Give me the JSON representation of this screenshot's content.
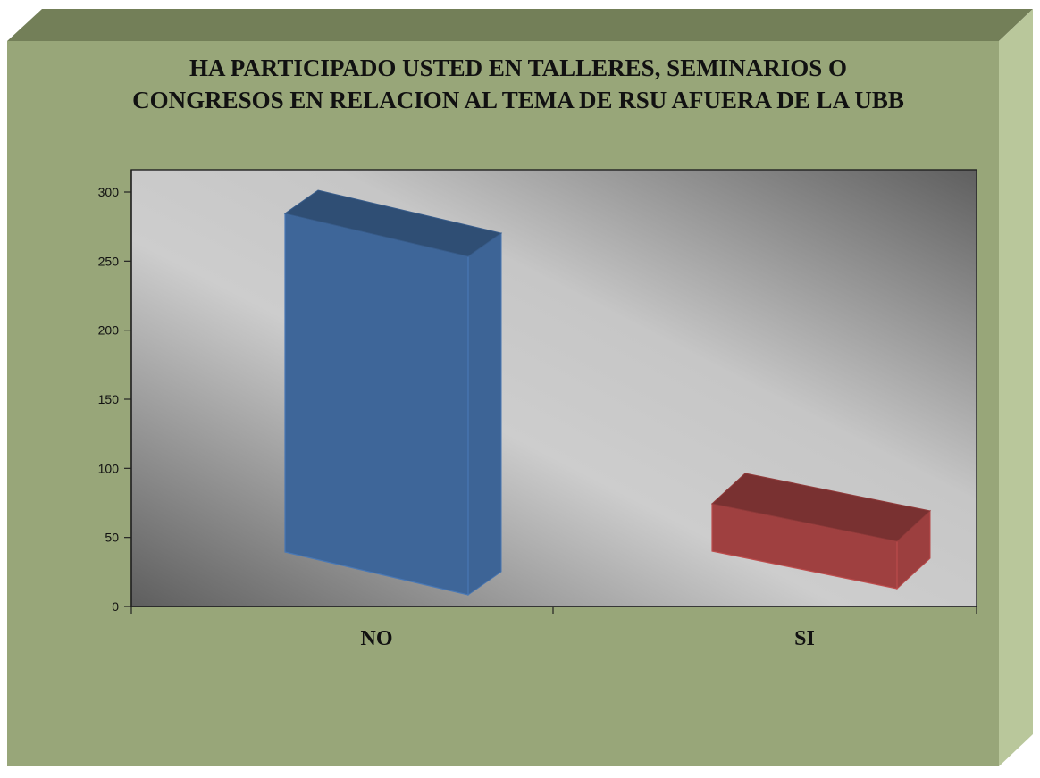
{
  "title_lines": [
    "HA PARTICIPADO USTED EN TALLERES, SEMINARIOS O",
    "CONGRESOS EN RELACION AL TEMA DE RSU AFUERA DE LA UBB"
  ],
  "colors": {
    "frame_face": "#98a679",
    "frame_top": "#737f58",
    "frame_side": "#b9c79b",
    "bar_no": "#3e6699",
    "bar_si": "#9f4040"
  },
  "chart_data": {
    "type": "bar",
    "style": "3d-column",
    "title": "HA PARTICIPADO USTED EN TALLERES, SEMINARIOS O CONGRESOS EN RELACION AL TEMA DE RSU AFUERA DE LA UBB",
    "categories": [
      "NO",
      "SI"
    ],
    "values": [
      250,
      35
    ],
    "xlabel": "",
    "ylabel": "",
    "ylim": [
      0,
      300
    ],
    "yticks": [
      0,
      50,
      100,
      150,
      200,
      250,
      300
    ],
    "grid": false,
    "legend": "none"
  }
}
